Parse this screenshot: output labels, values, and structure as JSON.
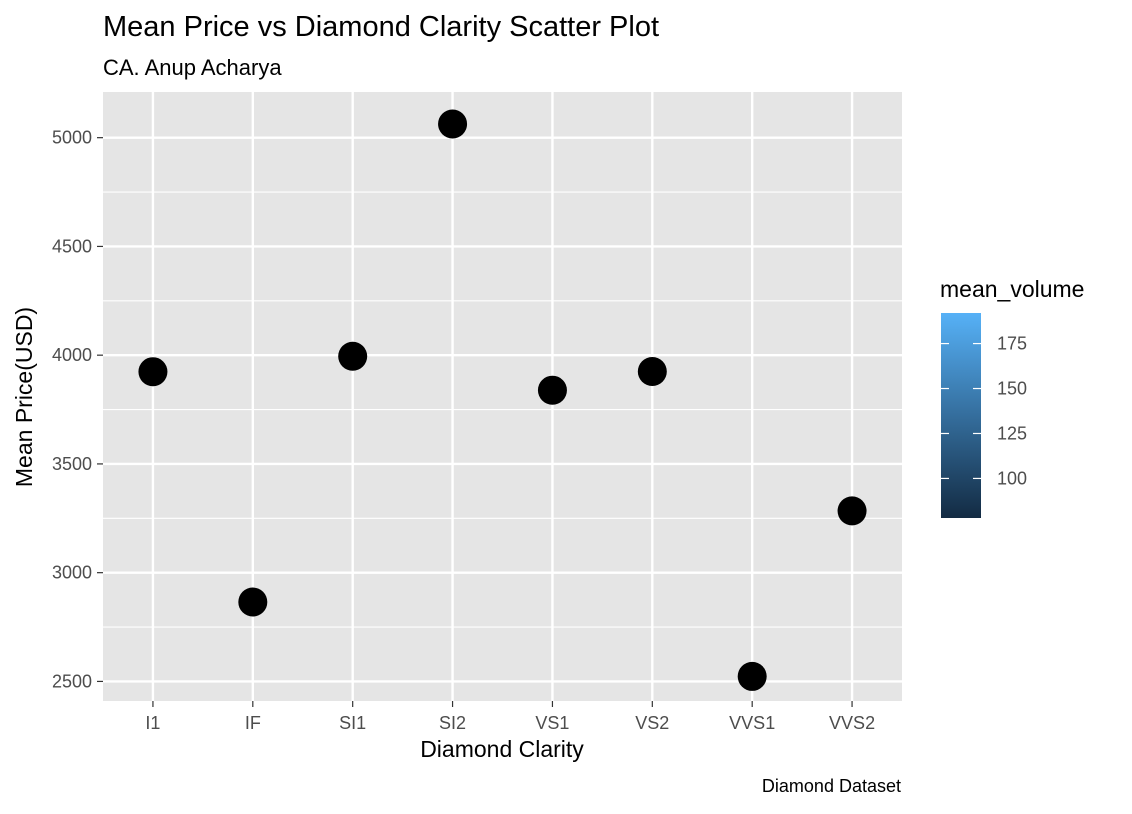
{
  "chart_data": {
    "type": "scatter",
    "title": "Mean Price vs Diamond Clarity Scatter Plot",
    "subtitle": "CA. Anup Acharya",
    "caption": "Diamond Dataset",
    "xlabel": "Diamond Clarity",
    "ylabel": "Mean Price(USD)",
    "categories": [
      "I1",
      "IF",
      "SI1",
      "SI2",
      "VS1",
      "VS2",
      "VVS1",
      "VVS2"
    ],
    "values": [
      3924,
      2865,
      3995,
      5063,
      3839,
      3925,
      2523,
      3284
    ],
    "ylim": [
      2410,
      5210
    ],
    "yticks": [
      2500,
      3000,
      3500,
      4000,
      4500,
      5000
    ],
    "grid": true,
    "point_color": "#000000",
    "panel_background": "#e5e5e5",
    "grid_color": "#ffffff",
    "legend": {
      "title": "mean_volume",
      "position": "right",
      "type": "colorbar",
      "range": [
        78,
        192
      ],
      "ticks": [
        100,
        125,
        150,
        175
      ],
      "color_low": "#132b43",
      "color_high": "#56b1f7"
    }
  }
}
